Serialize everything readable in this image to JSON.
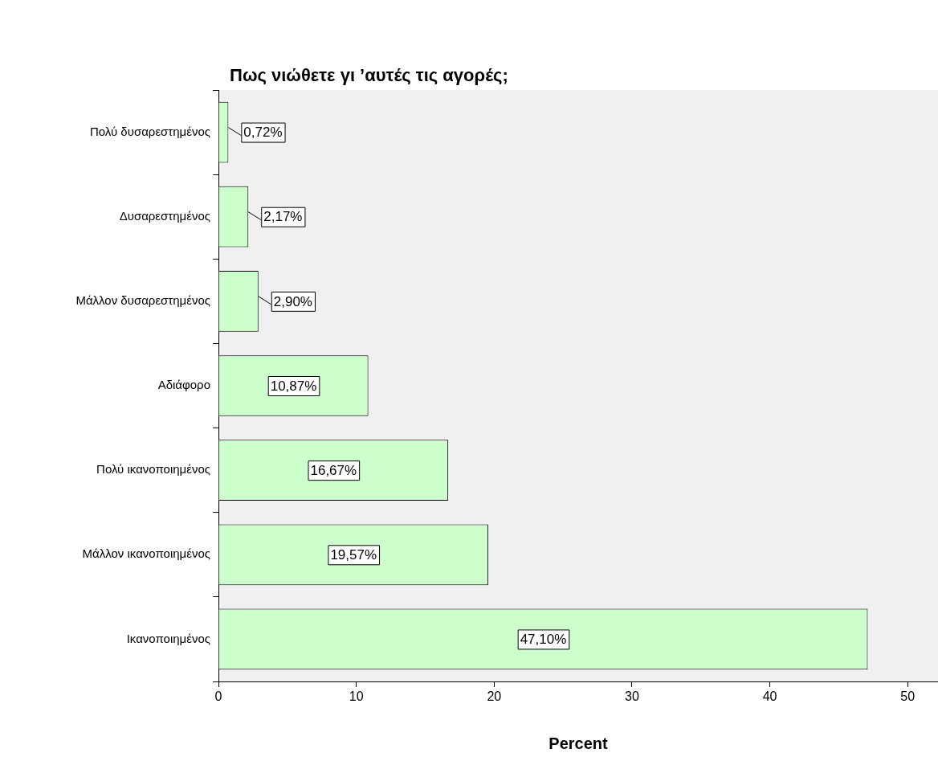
{
  "chart_data": {
    "type": "bar",
    "orientation": "horizontal",
    "title": "Πως νιώθετε γι ’αυτές τις αγορές;",
    "xlabel": "Percent",
    "categories": [
      "Πολύ δυσαρεστημένος",
      "Δυσαρεστημένος",
      "Μάλλον δυσαρεστημένος",
      "Αδιάφορο",
      "Πολύ ικανοποιημένος",
      "Μάλλον ικανοποιημένος",
      "Ικανοποιημένος"
    ],
    "values": [
      0.72,
      2.17,
      2.9,
      10.87,
      16.67,
      19.57,
      47.1
    ],
    "value_labels": [
      "0,72%",
      "2,17%",
      "2,90%",
      "10,87%",
      "16,67%",
      "19,57%",
      "47,10%"
    ],
    "color": "#ccffcc",
    "xlim": [
      0,
      52.2
    ],
    "xticks": [
      0,
      10,
      20,
      30,
      40,
      50
    ],
    "grid": false,
    "legend": false
  }
}
